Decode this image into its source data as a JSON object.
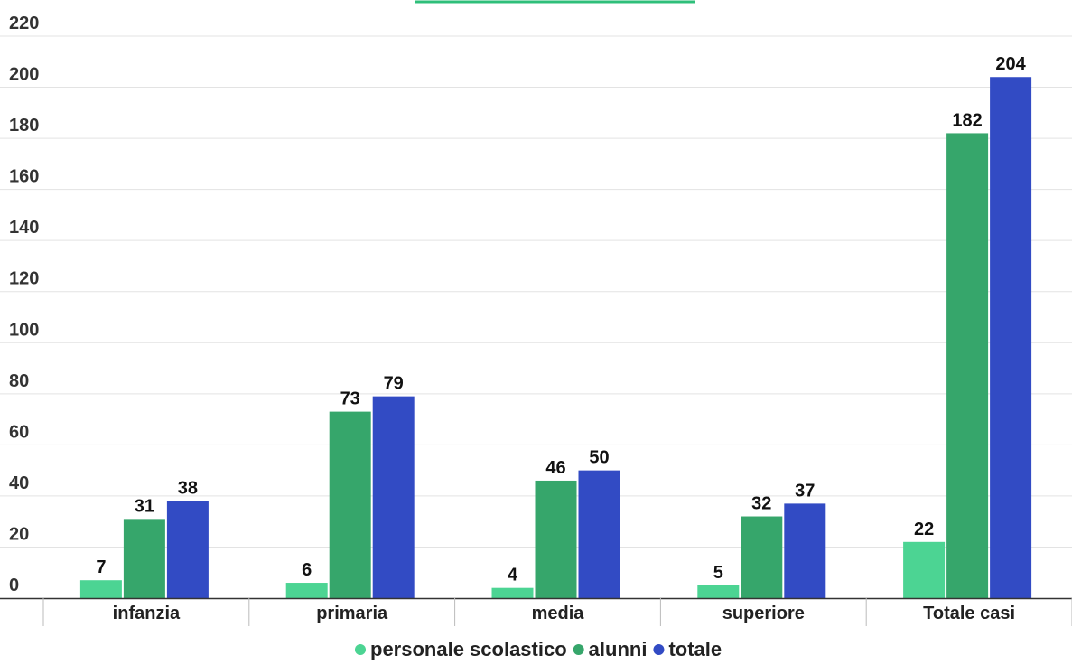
{
  "chart_data": {
    "type": "bar",
    "categories": [
      "infanzia",
      "primaria",
      "media",
      "superiore",
      "Totale casi"
    ],
    "series": [
      {
        "name": "personale scolastico",
        "color": "#4cd493",
        "values": [
          7,
          6,
          4,
          5,
          22
        ]
      },
      {
        "name": "alunni",
        "color": "#36a66b",
        "values": [
          31,
          73,
          46,
          32,
          182
        ]
      },
      {
        "name": "totale",
        "color": "#324bc4",
        "values": [
          38,
          79,
          50,
          37,
          204
        ]
      }
    ],
    "ylim": [
      0,
      220
    ],
    "yticks": [
      0,
      20,
      40,
      60,
      80,
      100,
      120,
      140,
      160,
      180,
      200,
      220
    ],
    "grid": true,
    "legend_position": "bottom-center",
    "top_accent_color": "#2fbf7a"
  }
}
